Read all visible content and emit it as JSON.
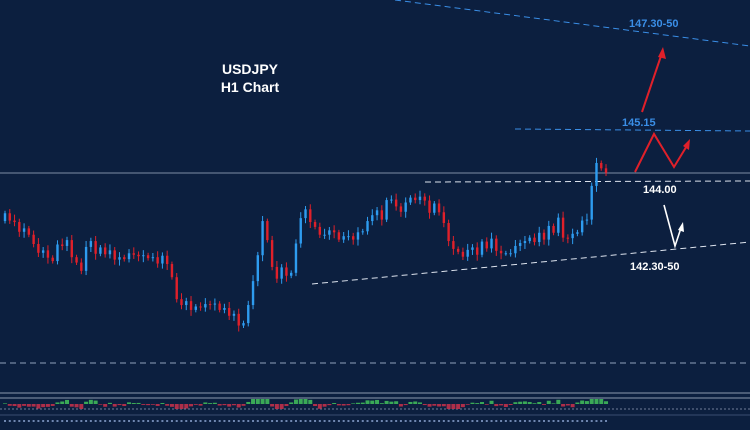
{
  "chart_data": {
    "type": "candlestick",
    "title": "USDJPY",
    "subtitle": "H1 Chart",
    "colors": {
      "background": "#0c1f3f",
      "bull": "#2e9cf0",
      "bear": "#e0202a",
      "level_blue": "#3a8ee6",
      "level_white": "#ffffff",
      "arrow_red": "#e0202a",
      "arrow_white": "#ffffff",
      "osc_pos": "#3fb85a",
      "osc_neg": "#c0304a"
    },
    "levels": [
      {
        "label": "147.30-50",
        "color": "#3a8ee6",
        "style": "dashed"
      },
      {
        "label": "145.15",
        "color": "#3a8ee6",
        "style": "dashed"
      },
      {
        "label": "144.00",
        "color": "#ffffff",
        "style": "dashed"
      },
      {
        "label": "142.30-50",
        "color": "#ffffff",
        "style": "dashed"
      }
    ],
    "closes": [
      143.36,
      143.21,
      143.18,
      142.98,
      143.05,
      142.92,
      142.73,
      142.55,
      142.6,
      142.45,
      142.38,
      142.72,
      142.69,
      142.81,
      142.46,
      142.35,
      142.18,
      142.67,
      142.79,
      142.53,
      142.66,
      142.52,
      142.6,
      142.41,
      142.46,
      142.42,
      142.54,
      142.51,
      142.48,
      142.5,
      142.44,
      142.46,
      142.33,
      142.49,
      142.32,
      142.05,
      141.6,
      141.48,
      141.56,
      141.38,
      141.45,
      141.43,
      141.5,
      141.49,
      141.51,
      141.38,
      141.42,
      141.26,
      141.3,
      141.06,
      141.11,
      141.48,
      141.97,
      142.5,
      143.2,
      142.81,
      142.26,
      142.02,
      142.25,
      142.08,
      142.14,
      142.74,
      143.26,
      143.44,
      143.18,
      143.08,
      142.92,
      142.92,
      143.01,
      142.97,
      142.82,
      142.89,
      142.89,
      142.82,
      142.97,
      142.99,
      143.2,
      143.32,
      143.42,
      143.23,
      143.63,
      143.64,
      143.5,
      143.39,
      143.58,
      143.68,
      143.63,
      143.7,
      143.62,
      143.37,
      143.56,
      143.38,
      143.16,
      142.79,
      142.63,
      142.57,
      142.47,
      142.61,
      142.66,
      142.51,
      142.78,
      142.64,
      142.84,
      142.59,
      142.54,
      142.54,
      142.54,
      142.69,
      142.75,
      142.79,
      142.86,
      142.77,
      142.96,
      142.82,
      143.1,
      142.96,
      143.27,
      142.86,
      142.85,
      142.94,
      142.97,
      143.21,
      143.23,
      143.92,
      144.39,
      144.28,
      144.19
    ]
  }
}
